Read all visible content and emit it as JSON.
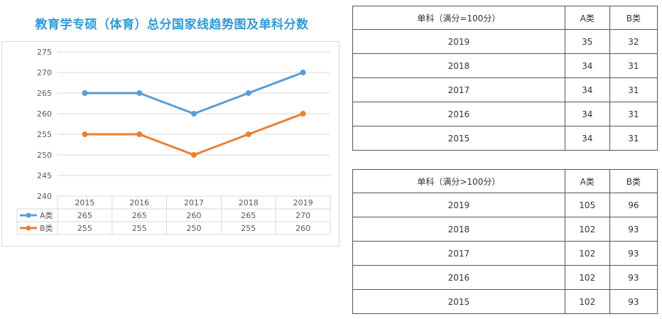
{
  "chart_data": {
    "type": "line",
    "title": "教育学专硕（体育）总分国家线趋势图及单科分数",
    "categories": [
      "2015",
      "2016",
      "2017",
      "2018",
      "2019"
    ],
    "series": [
      {
        "name": "A类",
        "values": [
          265,
          265,
          260,
          265,
          270
        ],
        "color": "#5b9bd5"
      },
      {
        "name": "B类",
        "values": [
          255,
          255,
          250,
          255,
          260
        ],
        "color": "#ed7d31"
      }
    ],
    "ylim": [
      240,
      275
    ],
    "yticks": [
      240,
      245,
      250,
      255,
      260,
      265,
      270,
      275
    ],
    "grid": true,
    "legend": "data-table"
  },
  "tables": [
    {
      "header": [
        "单科（满分=100分）",
        "A类",
        "B类"
      ],
      "rows": [
        [
          "2019",
          "35",
          "32"
        ],
        [
          "2018",
          "34",
          "31"
        ],
        [
          "2017",
          "34",
          "31"
        ],
        [
          "2016",
          "34",
          "31"
        ],
        [
          "2015",
          "34",
          "31"
        ]
      ]
    },
    {
      "header": [
        "单科（满分>100分）",
        "A类",
        "B类"
      ],
      "rows": [
        [
          "2019",
          "105",
          "96"
        ],
        [
          "2018",
          "102",
          "93"
        ],
        [
          "2017",
          "102",
          "93"
        ],
        [
          "2016",
          "102",
          "93"
        ],
        [
          "2015",
          "102",
          "93"
        ]
      ]
    }
  ]
}
